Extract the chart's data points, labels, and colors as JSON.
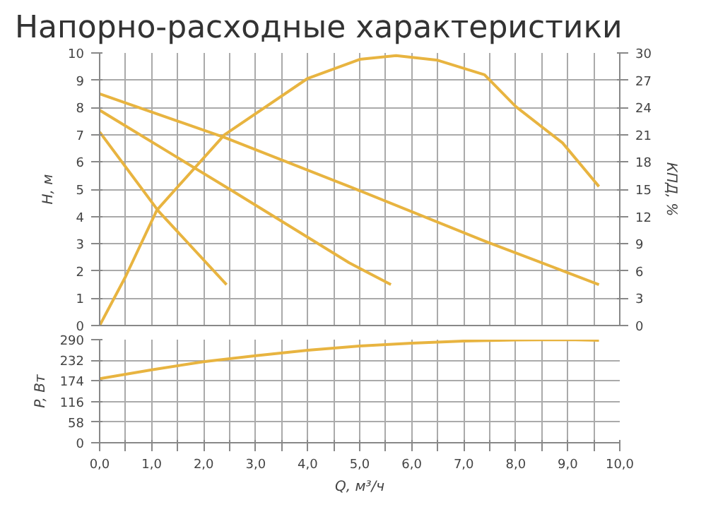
{
  "chart_data": [
    {
      "type": "line",
      "title": "Напорно-расходные характеристики",
      "ylabel": "H, м",
      "y2label": "КПД, %",
      "xlim": [
        0,
        10
      ],
      "ylim": [
        0,
        10
      ],
      "y2lim": [
        0,
        30
      ],
      "xticks": [
        {
          "value": 0,
          "label": null
        },
        {
          "value": 0.5,
          "label": null
        },
        {
          "value": 1,
          "label": null
        },
        {
          "value": 1.5,
          "label": null
        },
        {
          "value": 2,
          "label": null
        },
        {
          "value": 2.5,
          "label": null
        },
        {
          "value": 3,
          "label": null
        },
        {
          "value": 3.5,
          "label": null
        },
        {
          "value": 4,
          "label": null
        },
        {
          "value": 4.5,
          "label": null
        },
        {
          "value": 5,
          "label": null
        },
        {
          "value": 5.5,
          "label": null
        },
        {
          "value": 6,
          "label": null
        },
        {
          "value": 6.5,
          "label": null
        },
        {
          "value": 7,
          "label": null
        },
        {
          "value": 7.5,
          "label": null
        },
        {
          "value": 8,
          "label": null
        },
        {
          "value": 8.5,
          "label": null
        },
        {
          "value": 9,
          "label": null
        },
        {
          "value": 9.5,
          "label": null
        },
        {
          "value": 10,
          "label": null
        }
      ],
      "yticks": [
        0,
        1,
        2,
        3,
        4,
        5,
        6,
        7,
        8,
        9,
        10
      ],
      "y2ticks": [
        0,
        3,
        6,
        9,
        12,
        15,
        18,
        21,
        24,
        27,
        30
      ],
      "tick_labels": "y",
      "grid": true,
      "series": [
        {
          "color": "#e8b440",
          "x": [
            0,
            1.13,
            2.44
          ],
          "values": [
            7.1,
            4.2,
            1.5
          ]
        },
        {
          "color": "#e8b440",
          "x": [
            0,
            2.5,
            4.8,
            5.6
          ],
          "values": [
            7.9,
            5.0,
            2.3,
            1.5
          ]
        },
        {
          "color": "#e8b440",
          "x": [
            0,
            2.4,
            4.8,
            7.4,
            9.6
          ],
          "values": [
            8.5,
            6.9,
            5.1,
            3.1,
            1.5
          ]
        },
        {
          "color": "#e8b440",
          "axis": "y2",
          "x": [
            0,
            0.5,
            1.1,
            2.4,
            4.0,
            5.0,
            5.7,
            6.5,
            7.4,
            8.0,
            8.9,
            9.6
          ],
          "values": [
            0,
            5.4,
            12.7,
            21,
            27.2,
            29.3,
            29.7,
            29.2,
            27.6,
            24.1,
            20.1,
            15.3
          ]
        }
      ]
    },
    {
      "type": "line",
      "xlabel": "Q, м³/ч",
      "ylabel": "P, Вт",
      "xlim": [
        0,
        10
      ],
      "ylim": [
        0,
        290
      ],
      "xticks": [
        {
          "value": 0,
          "label": "0,0"
        },
        {
          "value": 0.5,
          "label": null
        },
        {
          "value": 1,
          "label": "1,0"
        },
        {
          "value": 1.5,
          "label": null
        },
        {
          "value": 2,
          "label": "2,0"
        },
        {
          "value": 2.5,
          "label": null
        },
        {
          "value": 3,
          "label": "3,0"
        },
        {
          "value": 3.5,
          "label": null
        },
        {
          "value": 4,
          "label": "4,0"
        },
        {
          "value": 4.5,
          "label": null
        },
        {
          "value": 5,
          "label": "5,0"
        },
        {
          "value": 5.5,
          "label": null
        },
        {
          "value": 6,
          "label": "6,0"
        },
        {
          "value": 6.5,
          "label": null
        },
        {
          "value": 7,
          "label": "7,0"
        },
        {
          "value": 7.5,
          "label": null
        },
        {
          "value": 8,
          "label": "8,0"
        },
        {
          "value": 8.5,
          "label": null
        },
        {
          "value": 9,
          "label": "9,0"
        },
        {
          "value": 9.5,
          "label": null
        },
        {
          "value": 10,
          "label": "10,0"
        }
      ],
      "yticks": [
        0,
        58,
        116,
        174,
        232,
        290
      ],
      "grid": true,
      "series": [
        {
          "color": "#e8b440",
          "x": [
            0,
            1,
            2,
            3,
            4,
            5,
            6,
            7,
            8,
            9,
            9.6
          ],
          "values": [
            180,
            205,
            228,
            245,
            260,
            272,
            280,
            286,
            289,
            290,
            288
          ]
        }
      ]
    }
  ]
}
